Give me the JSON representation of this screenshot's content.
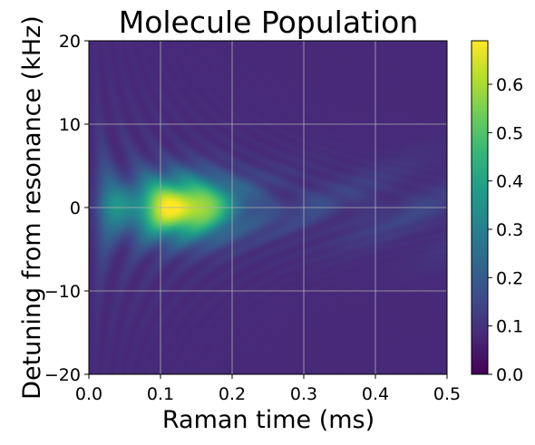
{
  "chart_data": {
    "type": "heatmap",
    "title": "Molecule Population",
    "xlabel": "Raman time (ms)",
    "ylabel": "Detuning from resonance (kHz)",
    "xlim": [
      0.0,
      0.5
    ],
    "ylim": [
      -20,
      20
    ],
    "x_ticks": [
      0.0,
      0.1,
      0.2,
      0.3,
      0.4,
      0.5
    ],
    "x_tick_labels": [
      "0.0",
      "0.1",
      "0.2",
      "0.3",
      "0.4",
      "0.5"
    ],
    "y_ticks": [
      -20,
      -10,
      0,
      10,
      20
    ],
    "y_tick_labels": [
      "−20",
      "−10",
      "0",
      "10",
      "20"
    ],
    "colorbar": {
      "vmin": 0.0,
      "vmax": 0.69,
      "ticks": [
        0.0,
        0.1,
        0.2,
        0.3,
        0.4,
        0.5,
        0.6
      ],
      "tick_labels": [
        "0.0",
        "0.1",
        "0.2",
        "0.3",
        "0.4",
        "0.5",
        "0.6"
      ],
      "colormap": "viridis"
    },
    "peak": {
      "x": 0.13,
      "y": 0,
      "value": 0.69
    },
    "grid": true
  }
}
